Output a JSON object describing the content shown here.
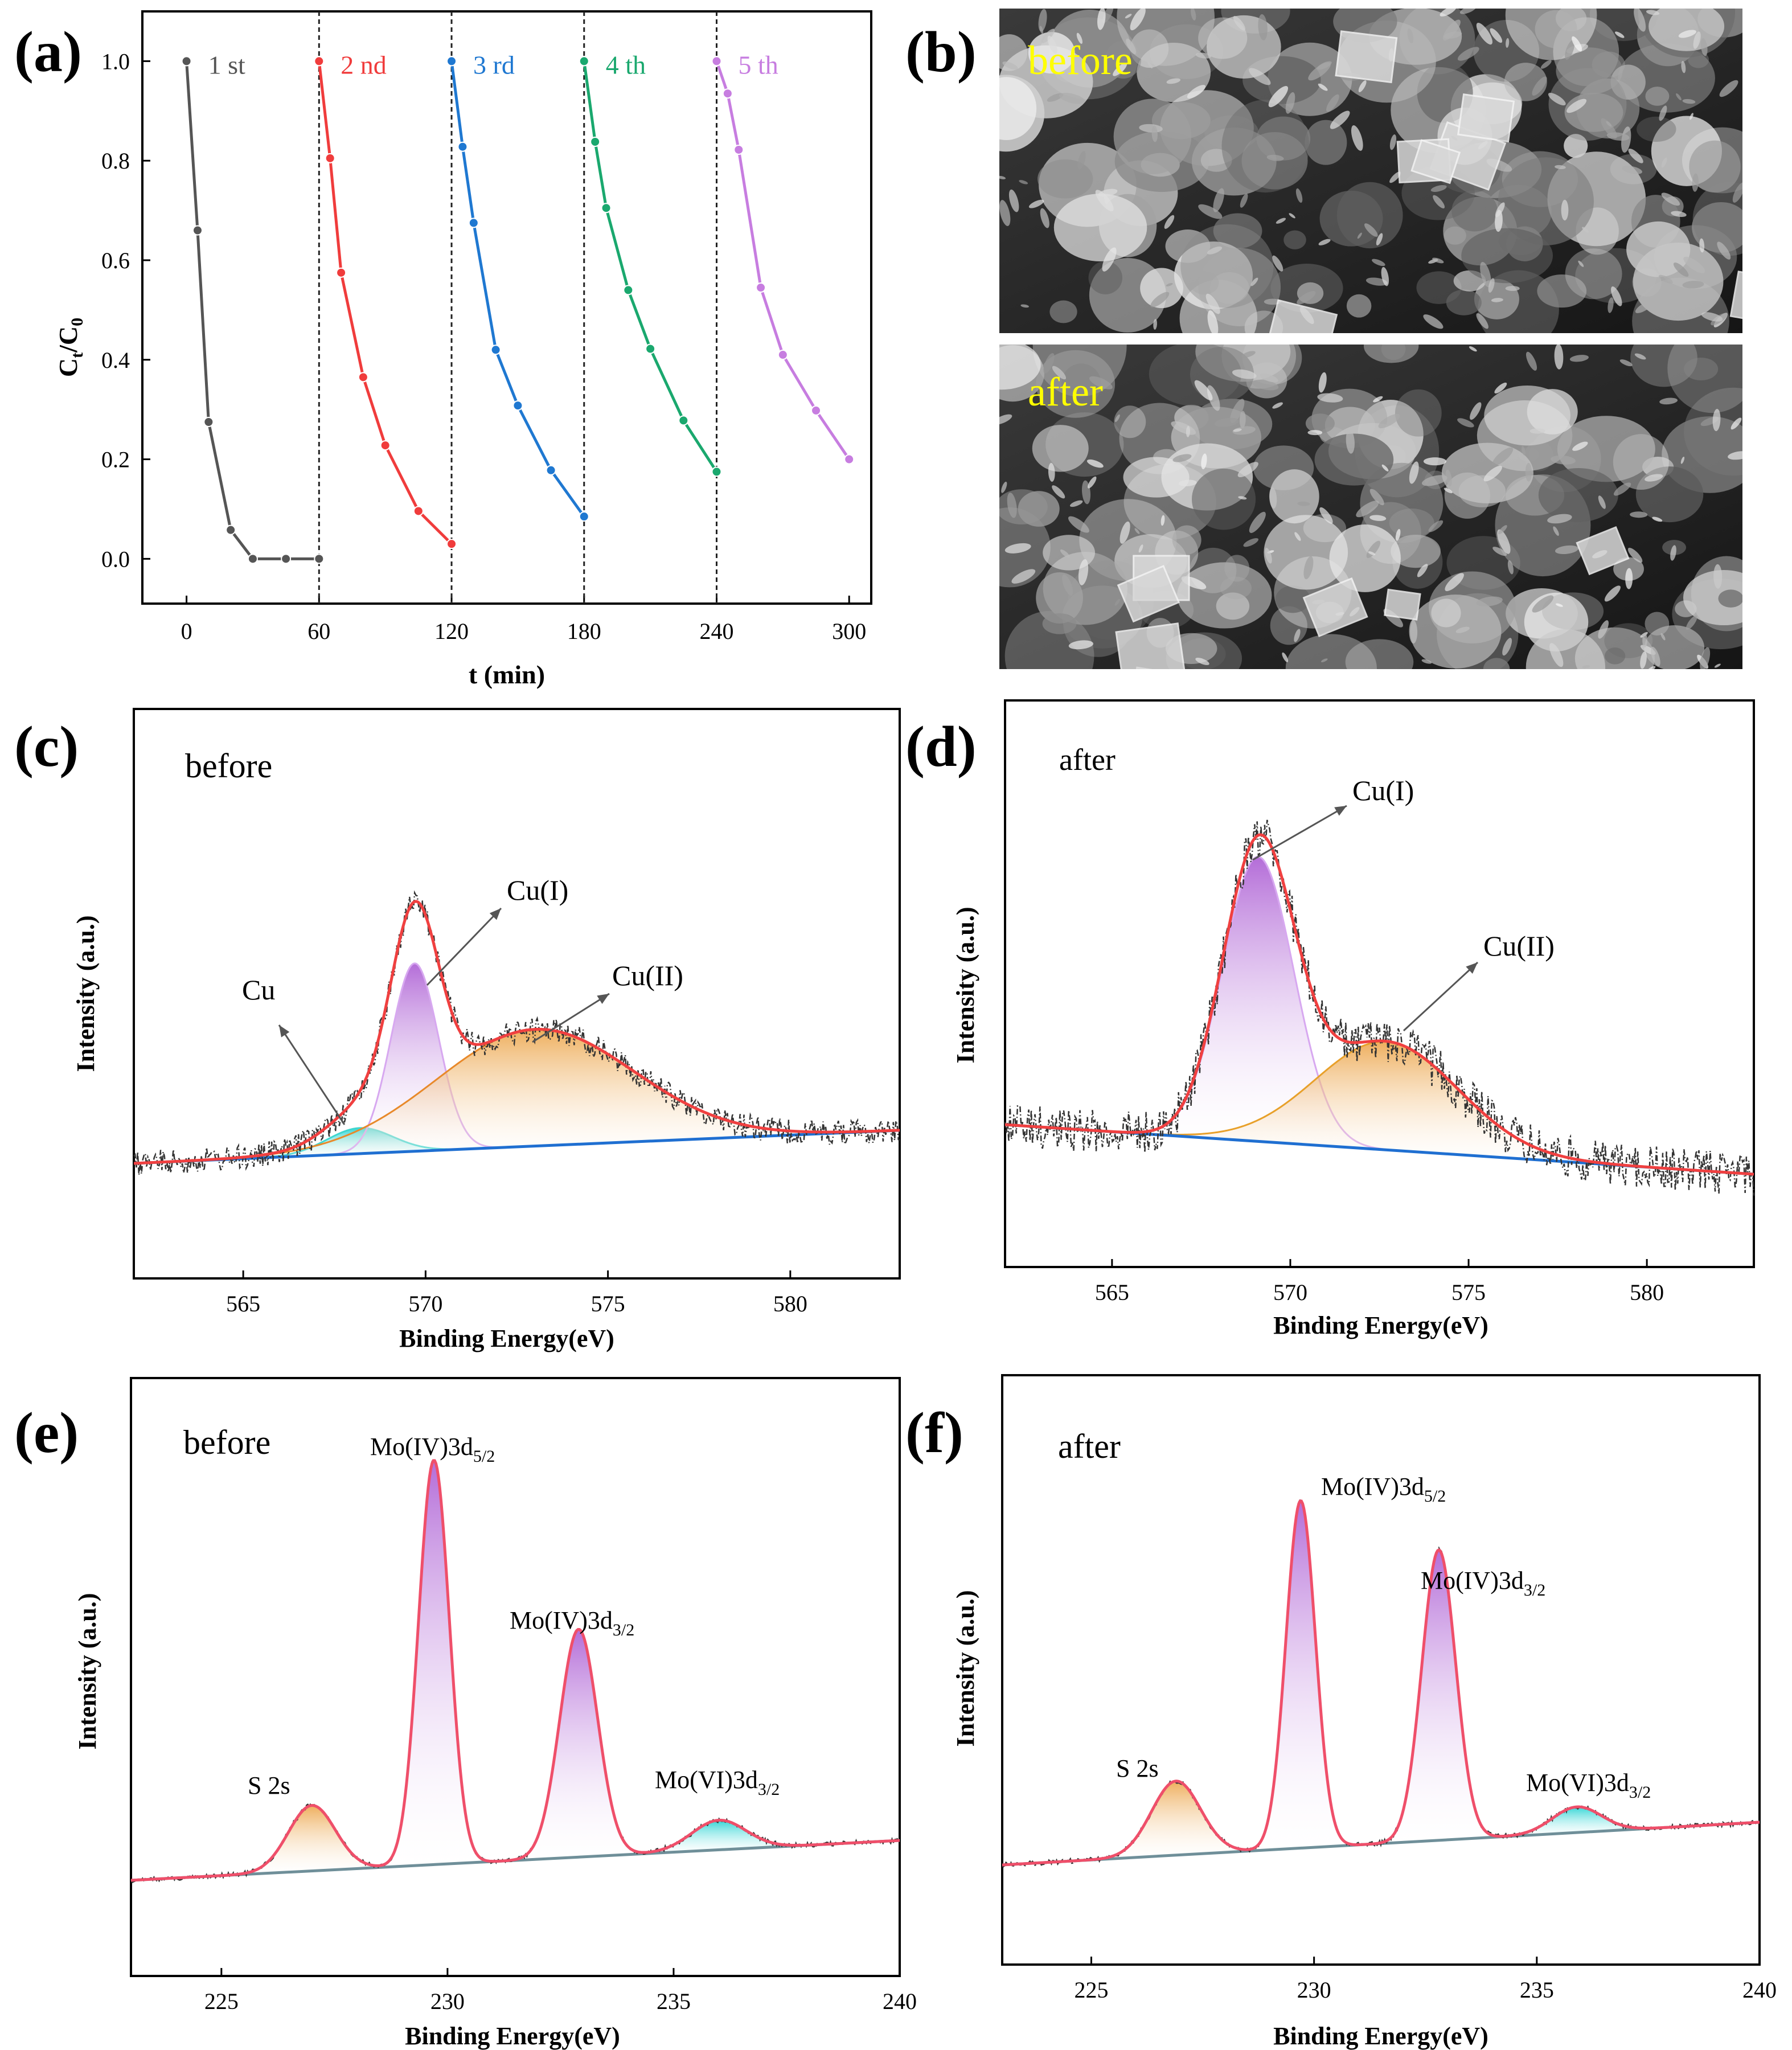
{
  "panels": {
    "a": {
      "letter": "(a)"
    },
    "b": {
      "letter": "(b)",
      "top_label": "before",
      "bottom_label": "after",
      "label_color": "#ffff00"
    },
    "c": {
      "letter": "(c)"
    },
    "d": {
      "letter": "(d)"
    },
    "e": {
      "letter": "(e)"
    },
    "f": {
      "letter": "(f)"
    }
  },
  "chart_data": [
    {
      "panel": "a",
      "type": "line",
      "xlabel": "t (min)",
      "ylabel": "Ct/C0",
      "ylabel_main": "C",
      "ylabel_sub1": "t",
      "ylabel_slash": "/C",
      "ylabel_sub2": "0",
      "xlim": [
        -20,
        310
      ],
      "ylim": [
        -0.09,
        1.1
      ],
      "xticks": [
        0,
        60,
        120,
        180,
        240,
        300
      ],
      "yticks": [
        "0.0",
        "0.2",
        "0.4",
        "0.6",
        "0.8",
        "1.0"
      ],
      "vlines": [
        60,
        120,
        180,
        240
      ],
      "series": [
        {
          "name": "1 st",
          "color": "#555555",
          "x": [
            0,
            5,
            10,
            20,
            30,
            45,
            60
          ],
          "y": [
            1.0,
            0.66,
            0.275,
            0.058,
            0.0,
            0.0,
            0.0
          ]
        },
        {
          "name": "2 nd",
          "color": "#f03c3c",
          "x": [
            60,
            65,
            70,
            80,
            90,
            105,
            120
          ],
          "y": [
            1.0,
            0.805,
            0.575,
            0.365,
            0.228,
            0.096,
            0.03
          ]
        },
        {
          "name": "3 rd",
          "color": "#1f78d1",
          "x": [
            120,
            125,
            130,
            140,
            150,
            165,
            180
          ],
          "y": [
            1.0,
            0.828,
            0.675,
            0.42,
            0.308,
            0.178,
            0.085
          ]
        },
        {
          "name": "4 th",
          "color": "#1aa86e",
          "x": [
            180,
            185,
            190,
            200,
            210,
            225,
            240
          ],
          "y": [
            1.0,
            0.838,
            0.705,
            0.54,
            0.422,
            0.278,
            0.175
          ]
        },
        {
          "name": "5 th",
          "color": "#c77de0",
          "x": [
            240,
            245,
            250,
            260,
            270,
            285,
            300
          ],
          "y": [
            1.0,
            0.935,
            0.822,
            0.545,
            0.41,
            0.298,
            0.2
          ]
        }
      ]
    },
    {
      "panel": "c",
      "type": "line",
      "title": "before",
      "xlabel": "Binding Energy(eV)",
      "ylabel": "Intensity (a.u.)",
      "xlim": [
        562,
        583
      ],
      "xticks": [
        565,
        570,
        575,
        580
      ],
      "peaks": [
        {
          "name": "Cu",
          "center": 568.2
        },
        {
          "name": "Cu(I)",
          "center": 569.7
        },
        {
          "name": "Cu(II)",
          "center": 573.0
        }
      ]
    },
    {
      "panel": "d",
      "type": "line",
      "title": "after",
      "xlabel": "Binding Energy(eV)",
      "ylabel": "Intensity (a.u.)",
      "xlim": [
        562,
        583
      ],
      "xticks": [
        565,
        570,
        575,
        580
      ],
      "peaks": [
        {
          "name": "Cu(I)",
          "center": 569.1
        },
        {
          "name": "Cu(II)",
          "center": 572.7
        }
      ]
    },
    {
      "panel": "e",
      "type": "line",
      "title": "before",
      "xlabel": "Binding Energy(eV)",
      "ylabel": "Intensity (a.u.)",
      "xlim": [
        223,
        240
      ],
      "xticks": [
        225,
        230,
        235,
        240
      ],
      "peaks": [
        {
          "name": "S 2s",
          "center": 227.0
        },
        {
          "name": "Mo(IV)3d5/2",
          "center": 229.7
        },
        {
          "name": "Mo(IV)3d3/2",
          "center": 232.9
        },
        {
          "name": "Mo(VI)3d3/2",
          "center": 236.0
        }
      ]
    },
    {
      "panel": "f",
      "type": "line",
      "title": "after",
      "xlabel": "Binding Energy(eV)",
      "ylabel": "Intensity (a.u.)",
      "xlim": [
        223,
        240
      ],
      "xticks": [
        225,
        230,
        235,
        240
      ],
      "peaks": [
        {
          "name": "S 2s",
          "center": 226.9
        },
        {
          "name": "Mo(IV)3d5/2",
          "center": 229.7
        },
        {
          "name": "Mo(IV)3d3/2",
          "center": 232.8
        },
        {
          "name": "Mo(VI)3d3/2",
          "center": 235.9
        }
      ]
    }
  ],
  "xps_labels": {
    "c_cu": "Cu",
    "c_cu1": "Cu(I)",
    "c_cu2": "Cu(II)",
    "d_cu1": "Cu(I)",
    "d_cu2": "Cu(II)",
    "mo4_main": "Mo(IV)3d",
    "mo4_sub_52": "5/2",
    "mo4_sub_32": "3/2",
    "mo6_main": "Mo(VI)3d",
    "mo6_sub_32": "3/2",
    "s2s": "S 2s"
  }
}
